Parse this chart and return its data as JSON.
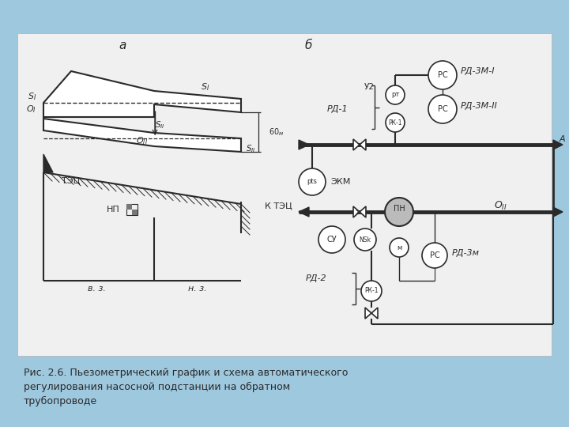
{
  "bg_color": "#9ec8de",
  "white_panel": "#f0f0f0",
  "line_color": "#2a2a2a",
  "caption_line1": "Рис. 2.6. Пьезометрический график и схема автоматического",
  "caption_line2": "регулирования насосной подстанции на обратном",
  "caption_line3": "трубопроводе"
}
